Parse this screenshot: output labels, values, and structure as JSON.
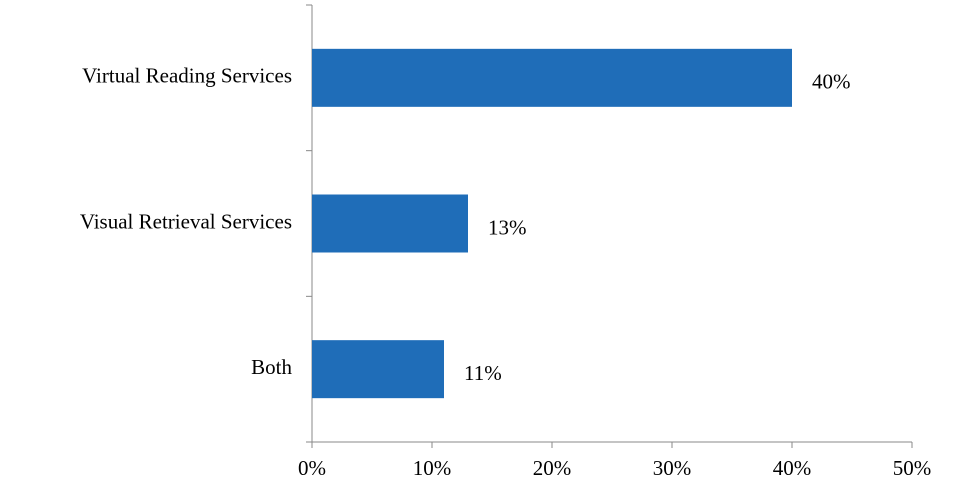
{
  "chart_data": {
    "type": "bar",
    "orientation": "horizontal",
    "categories": [
      "Virtual Reading Services",
      "Visual Retrieval Services",
      "Both"
    ],
    "values": [
      40,
      13,
      11
    ],
    "value_labels": [
      "40%",
      "13%",
      "11%"
    ],
    "color": "#1f6db8",
    "xlim": [
      0,
      50
    ],
    "xticks": [
      {
        "value": 0,
        "label": "0%"
      },
      {
        "value": 10,
        "label": "10%"
      },
      {
        "value": 20,
        "label": "20%"
      },
      {
        "value": 30,
        "label": "30%"
      },
      {
        "value": 40,
        "label": "40%"
      },
      {
        "value": 50,
        "label": "50%"
      }
    ],
    "grid": false
  }
}
